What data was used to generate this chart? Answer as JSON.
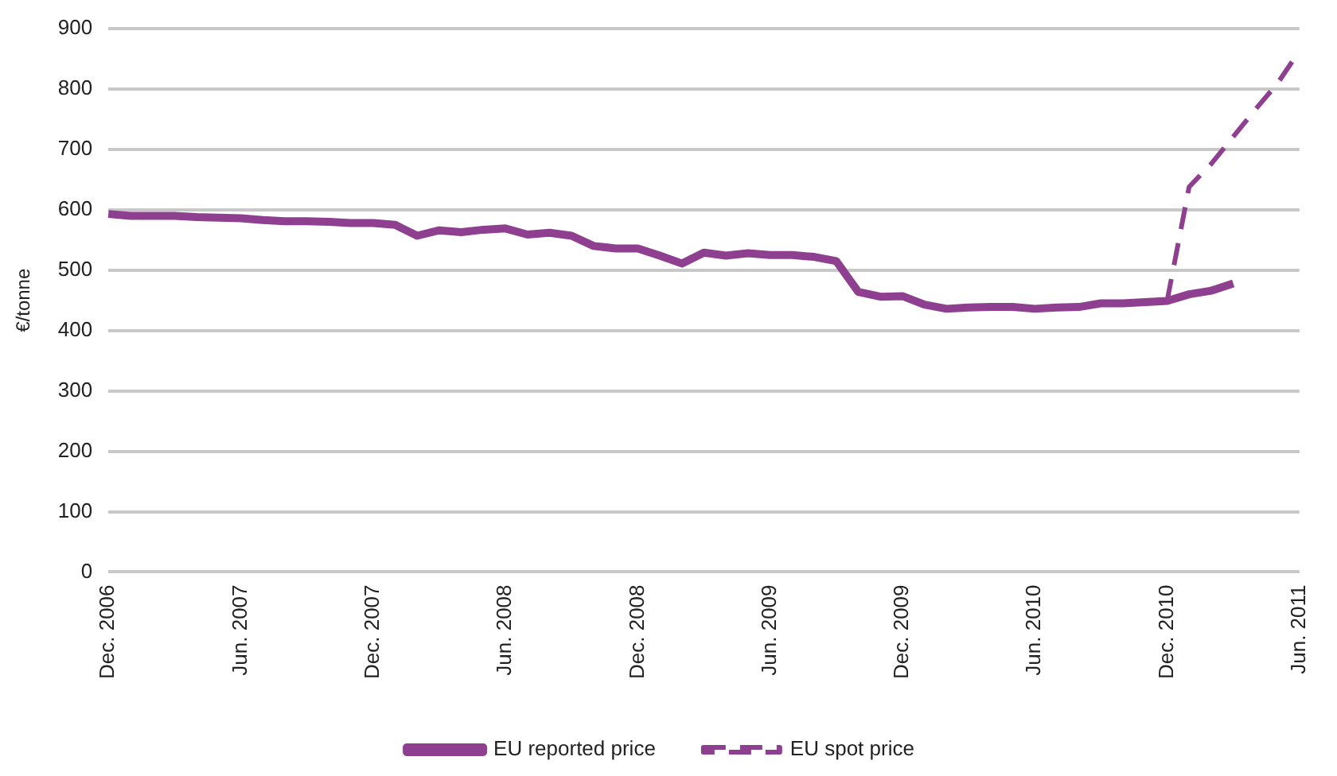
{
  "chart_data": {
    "type": "line",
    "ylabel": "€/tonne",
    "ylim": [
      0,
      900
    ],
    "yticks": [
      0,
      100,
      200,
      300,
      400,
      500,
      600,
      700,
      800,
      900
    ],
    "grid": "y",
    "legend": "bottom",
    "marker": "none",
    "categories": [
      "Dec. 2006",
      null,
      null,
      null,
      null,
      null,
      "Jun. 2007",
      null,
      null,
      null,
      null,
      null,
      "Dec. 2007",
      null,
      null,
      null,
      null,
      null,
      "Jun. 2008",
      null,
      null,
      null,
      null,
      null,
      "Dec. 2008",
      null,
      null,
      null,
      null,
      null,
      "Jun. 2009",
      null,
      null,
      null,
      null,
      null,
      "Dec. 2009",
      null,
      null,
      null,
      null,
      null,
      "Jun. 2010",
      null,
      null,
      null,
      null,
      null,
      "Dec. 2010",
      null,
      null,
      null,
      null,
      null,
      "Jun. 2011"
    ],
    "series": [
      {
        "name": "EU reported price",
        "color": "#8e3f8f",
        "line_style": "solid",
        "values": [
          593,
          590,
          590,
          590,
          588,
          587,
          586,
          583,
          581,
          581,
          580,
          578,
          578,
          575,
          557,
          566,
          563,
          567,
          569,
          559,
          562,
          557,
          540,
          536,
          536,
          524,
          511,
          529,
          524,
          528,
          525,
          525,
          522,
          515,
          464,
          456,
          457,
          443,
          436,
          438,
          439,
          439,
          436,
          438,
          439,
          445,
          445,
          447,
          449,
          460,
          466,
          478,
          null,
          null,
          null
        ]
      },
      {
        "name": "EU spot price",
        "color": "#8e3f8f",
        "line_style": "dashed",
        "values": [
          null,
          null,
          null,
          null,
          null,
          null,
          null,
          null,
          null,
          null,
          null,
          null,
          null,
          null,
          null,
          null,
          null,
          null,
          null,
          null,
          null,
          null,
          null,
          null,
          null,
          null,
          null,
          null,
          null,
          null,
          null,
          null,
          null,
          null,
          null,
          null,
          null,
          null,
          null,
          null,
          null,
          null,
          null,
          null,
          null,
          null,
          null,
          null,
          449,
          638,
          676,
          721,
          766,
          809,
          863
        ]
      }
    ]
  }
}
